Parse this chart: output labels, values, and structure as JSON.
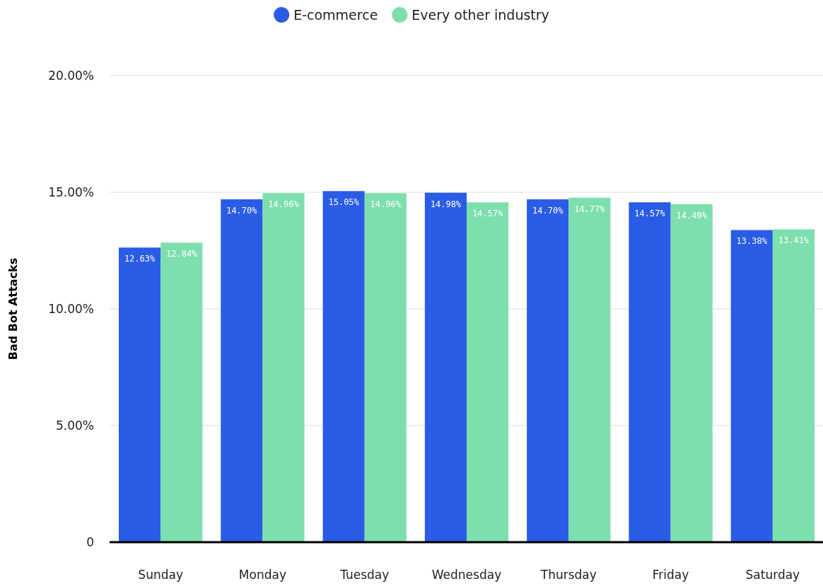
{
  "chart_data": {
    "type": "bar",
    "ylabel": "Bad Bot Attacks",
    "categories": [
      "Sunday",
      "Monday",
      "Tuesday",
      "Wednesday",
      "Thursday",
      "Friday",
      "Saturday"
    ],
    "series": [
      {
        "name": "E-commerce",
        "color": "#2a5ce6",
        "values": [
          12.63,
          14.7,
          15.05,
          14.98,
          14.7,
          14.57,
          13.38
        ],
        "value_labels": [
          "12.63%",
          "14.70%",
          "15.05%",
          "14.98%",
          "14.70%",
          "14.57%",
          "13.38%"
        ]
      },
      {
        "name": "Every other industry",
        "color": "#7ddfad",
        "values": [
          12.84,
          14.96,
          14.96,
          14.57,
          14.77,
          14.49,
          13.41
        ],
        "value_labels": [
          "12.84%",
          "14.96%",
          "14.96%",
          "14.57%",
          "14.77%",
          "14.49%",
          "13.41%"
        ]
      }
    ],
    "ylim": [
      0,
      20
    ],
    "yticks": [
      {
        "value": 0,
        "label": "0"
      },
      {
        "value": 5,
        "label": "5.00%"
      },
      {
        "value": 10,
        "label": "10.00%"
      },
      {
        "value": 15,
        "label": "15.00%"
      },
      {
        "value": 20,
        "label": "20.00%"
      }
    ],
    "grid": "y",
    "legend": "top"
  }
}
